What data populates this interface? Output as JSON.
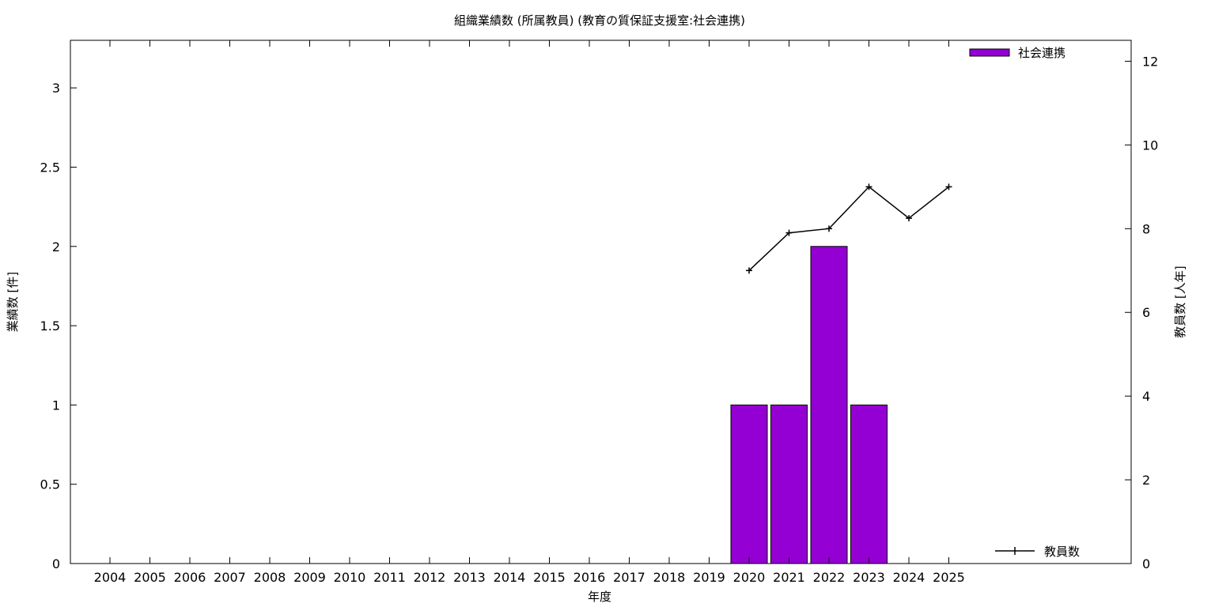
{
  "chart_data": {
    "type": "bar",
    "title": "組織業績数 (所属教員) (教育の質保証支援室:社会連携)",
    "xlabel": "年度",
    "ylabel": "業績数 [件]",
    "y2label": "教員数 [人年]",
    "categories": [
      "2004",
      "2005",
      "2006",
      "2007",
      "2008",
      "2009",
      "2010",
      "2011",
      "2012",
      "2013",
      "2014",
      "2015",
      "2016",
      "2017",
      "2018",
      "2019",
      "2020",
      "2021",
      "2022",
      "2023",
      "2024",
      "2025"
    ],
    "ylim": [
      0,
      3.3
    ],
    "yticks": [
      "0",
      "0.5",
      "1",
      "1.5",
      "2",
      "2.5",
      "3"
    ],
    "y2lim": [
      0,
      12.5
    ],
    "y2ticks": [
      "0",
      "2",
      "4",
      "6",
      "8",
      "10",
      "12"
    ],
    "grid": false,
    "series": [
      {
        "name": "社会連携",
        "type": "bar",
        "axis": "left",
        "color": "#9400d3",
        "values": [
          0,
          0,
          0,
          0,
          0,
          0,
          0,
          0,
          0,
          0,
          0,
          0,
          0,
          0,
          0,
          0,
          1,
          1,
          2,
          1,
          0,
          0
        ]
      },
      {
        "name": "教員数",
        "type": "line",
        "axis": "right",
        "color": "#000000",
        "values": [
          null,
          null,
          null,
          null,
          null,
          null,
          null,
          null,
          null,
          null,
          null,
          null,
          null,
          null,
          null,
          null,
          7.0,
          7.9,
          8.0,
          9.0,
          8.25,
          9.0
        ]
      }
    ],
    "legend": {
      "bar_position": "top-right",
      "line_position": "bottom-right"
    }
  }
}
